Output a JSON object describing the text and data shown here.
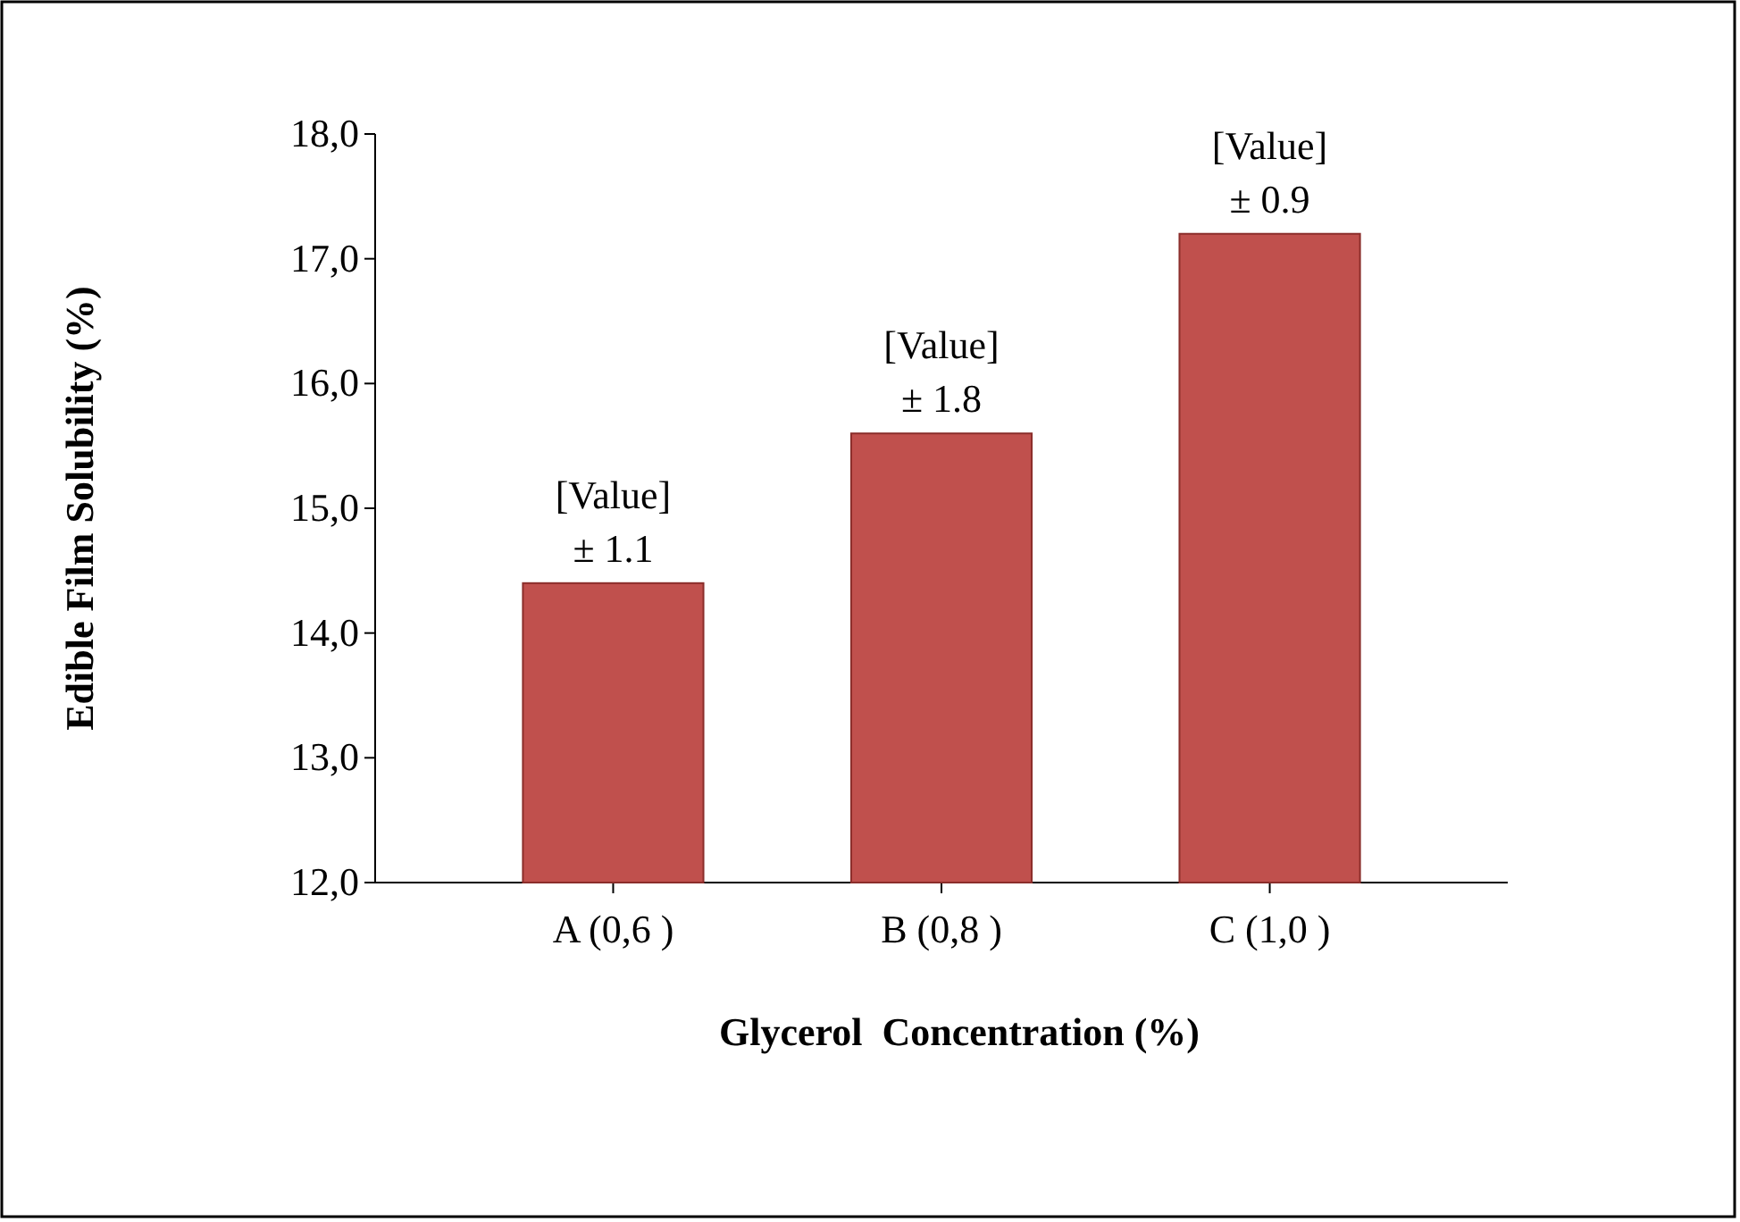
{
  "chart_data": {
    "type": "bar",
    "xlabel": "Glycerol  Concentration (%)",
    "ylabel": "Edible Film Solubility (%)",
    "categories": [
      "A (0,6 )",
      "B (0,8 )",
      "C (1,0 )"
    ],
    "values": [
      14.4,
      15.6,
      17.2
    ],
    "color": "#c0504d",
    "annotations": [
      {
        "text": "[Value]\n± 1.1",
        "x": "A (0,6 )",
        "y": 14.4
      },
      {
        "text": "[Value]\n± 1.8",
        "x": "B (0,8 )",
        "y": 15.6
      },
      {
        "text": "[Value]\n± 0.9",
        "x": "C (1,0 )",
        "y": 17.2
      }
    ],
    "ylim": [
      12,
      18
    ],
    "yticks": [
      {
        "value": 12,
        "label": "12,0"
      },
      {
        "value": 13,
        "label": "13,0"
      },
      {
        "value": 14,
        "label": "14,0"
      },
      {
        "value": 15,
        "label": "15,0"
      },
      {
        "value": 16,
        "label": "16,0"
      },
      {
        "value": 17,
        "label": "17,0"
      },
      {
        "value": 18,
        "label": "18,0"
      }
    ],
    "grid": false
  }
}
